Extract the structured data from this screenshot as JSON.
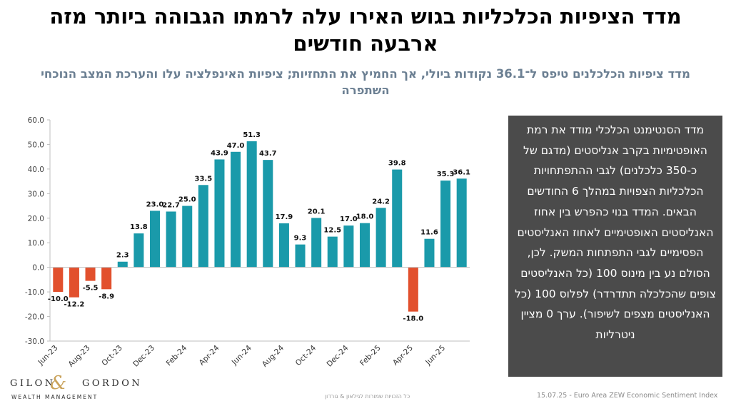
{
  "header": {
    "title": "מדד הציפיות הכלכליות בגוש האירו עלה לרמתו הגבוהה ביותר מזה ארבעה חודשים",
    "subtitle": "מדד ציפיות הכלכלנים טיפס ל־36.1 נקודות ביולי, אך החמיץ את התחזיות; ציפיות האינפלציה עלו והערכת המצב הנוכחי השתפרה"
  },
  "textbox": {
    "text": "מדד הסנטימנט הכלכלי מודד את רמת האופטימיות בקרב אנליסטים (מדגם של כ-350 כלכלנים) לגבי ההתפתחויות הכלכליות הצפויות במהלך 6 החודשים הבאים. המדד בנוי כהפרש בין אחוז האנליסטים האופטימיים לאחוז האנליסטים הפסימיים לגבי התפתחות המשק. לכן, הסולם נע בין מינוס 100 (כל האנליסטים צופים שהכלכלה תתדרדר) לפלוס 100 (כל האנליסטים מצפים לשיפור). ערך 0 מציין ניטרליות"
  },
  "logo": {
    "main": "GILON",
    "amp": "&",
    "main2": "GORDON",
    "sub": "WEALTH MANAGEMENT"
  },
  "footer": {
    "rights": "כל הזכויות שמורות לגילאון & גורדון",
    "source": "15.07.25 - Euro Area ZEW Economic Sentiment Index"
  },
  "colors": {
    "positive": "#1a9aaa",
    "negative": "#e2502d",
    "textbox_bg": "#4b4b4b"
  },
  "chart_data": {
    "type": "bar",
    "categories": [
      "Jun-23",
      "Jul-23",
      "Aug-23",
      "Sep-23",
      "Oct-23",
      "Nov-23",
      "Dec-23",
      "Jan-24",
      "Feb-24",
      "Mar-24",
      "Apr-24",
      "May-24",
      "Jun-24",
      "Jul-24",
      "Aug-24",
      "Sep-24",
      "Oct-24",
      "Nov-24",
      "Dec-24",
      "Jan-25",
      "Feb-25",
      "Mar-25",
      "Apr-25",
      "May-25",
      "Jun-25",
      "Jul-25"
    ],
    "values": [
      -10.0,
      -12.2,
      -5.5,
      -8.9,
      2.3,
      13.8,
      23.0,
      22.7,
      25.0,
      33.5,
      43.9,
      47.0,
      51.3,
      43.7,
      17.9,
      9.3,
      20.1,
      12.5,
      17.0,
      18.0,
      24.2,
      39.8,
      -18.0,
      11.6,
      35.3,
      36.1
    ],
    "value_labels": [
      "-10.0",
      "-12.2",
      "-5.5",
      "-8.9",
      "2.3",
      "13.8",
      "23.0",
      "22.7",
      "25.0",
      "33.5",
      "43.9",
      "47.0",
      "51.3",
      "43.7",
      "17.9",
      "9.3",
      "20.1",
      "12.5",
      "17.0",
      "18.0",
      "24.2",
      "39.8",
      "-18.0",
      "11.6",
      "35.3",
      "36.1"
    ],
    "x_tick_labels": [
      "Jun-23",
      "Aug-23",
      "Oct-23",
      "Dec-23",
      "Feb-24",
      "Apr-24",
      "Jun-24",
      "Aug-24",
      "Oct-24",
      "Dec-24",
      "Feb-25",
      "Apr-25",
      "Jun-25"
    ],
    "y_tick_labels": [
      "60.0",
      "50.0",
      "40.0",
      "30.0",
      "20.0",
      "10.0",
      "0.0",
      "-10.0",
      "-20.0",
      "-30.0"
    ],
    "ylim": [
      -30,
      60
    ],
    "grid": false,
    "legend": "none",
    "title": "",
    "xlabel": "",
    "ylabel": ""
  }
}
